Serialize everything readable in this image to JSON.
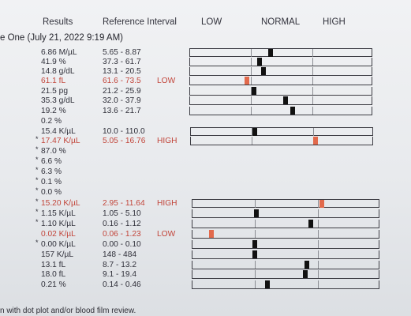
{
  "header": {
    "results": "Results",
    "reference": "Reference Interval",
    "low": "LOW",
    "normal": "NORMAL",
    "high": "HIGH"
  },
  "section_title": "e One (July 21, 2022 9:19 AM)",
  "rows": [
    {
      "value": "6.86 M/µL",
      "ref": "5.65 - 8.87",
      "flag": "",
      "star": false,
      "abnormal": false,
      "level": 0.44
    },
    {
      "value": "41.9 %",
      "ref": "37.3 - 61.7",
      "flag": "",
      "star": false,
      "abnormal": false,
      "level": 0.38
    },
    {
      "value": "14.8 g/dL",
      "ref": "13.1 - 20.5",
      "flag": "",
      "star": false,
      "abnormal": false,
      "level": 0.4
    },
    {
      "value": "61.1 fL",
      "ref": "61.6 - 73.5",
      "flag": "LOW",
      "star": false,
      "abnormal": true,
      "level": 0.31
    },
    {
      "value": "21.5 pg",
      "ref": "21.2 - 25.9",
      "flag": "",
      "star": false,
      "abnormal": false,
      "level": 0.35
    },
    {
      "value": "35.3 g/dL",
      "ref": "32.0 - 37.9",
      "flag": "",
      "star": false,
      "abnormal": false,
      "level": 0.52
    },
    {
      "value": "19.2 %",
      "ref": "13.6 - 21.7",
      "flag": "",
      "star": false,
      "abnormal": false,
      "level": 0.56
    },
    {
      "value": "0.2 %",
      "ref": "",
      "flag": "",
      "star": false,
      "abnormal": false,
      "level": null
    },
    {
      "value": "15.4 K/µL",
      "ref": "10.0 - 110.0",
      "flag": "",
      "star": false,
      "abnormal": false,
      "level": 0.35
    },
    {
      "value": "17.47 K/µL",
      "ref": "5.05 - 16.76",
      "flag": "HIGH",
      "star": true,
      "abnormal": true,
      "level": 0.68
    },
    {
      "value": "87.0 %",
      "ref": "",
      "flag": "",
      "star": true,
      "abnormal": false,
      "level": null
    },
    {
      "value": "6.6 %",
      "ref": "",
      "flag": "",
      "star": true,
      "abnormal": false,
      "level": null
    },
    {
      "value": "6.3 %",
      "ref": "",
      "flag": "",
      "star": true,
      "abnormal": false,
      "level": null
    },
    {
      "value": "0.1 %",
      "ref": "",
      "flag": "",
      "star": true,
      "abnormal": false,
      "level": null
    },
    {
      "value": "0.0 %",
      "ref": "",
      "flag": "",
      "star": true,
      "abnormal": false,
      "level": null
    },
    {
      "value": "15.20 K/µL",
      "ref": "2.95 - 11.64",
      "flag": "HIGH",
      "star": true,
      "abnormal": true,
      "level": 0.69
    },
    {
      "value": "1.15 K/µL",
      "ref": "1.05 - 5.10",
      "flag": "",
      "star": true,
      "abnormal": false,
      "level": 0.34
    },
    {
      "value": "1.10 K/µL",
      "ref": "0.16 - 1.12",
      "flag": "",
      "star": true,
      "abnormal": false,
      "level": 0.63
    },
    {
      "value": "0.02 K/µL",
      "ref": "0.06 - 1.23",
      "flag": "LOW",
      "star": false,
      "abnormal": true,
      "level": 0.1
    },
    {
      "value": "0.00 K/µL",
      "ref": "0.00 - 0.10",
      "flag": "",
      "star": true,
      "abnormal": false,
      "level": 0.33
    },
    {
      "value": "157 K/µL",
      "ref": "148 - 484",
      "flag": "",
      "star": false,
      "abnormal": false,
      "level": 0.33
    },
    {
      "value": "13.1 fL",
      "ref": "8.7 - 13.2",
      "flag": "",
      "star": false,
      "abnormal": false,
      "level": 0.61
    },
    {
      "value": "18.0 fL",
      "ref": "9.1 - 19.4",
      "flag": "",
      "star": false,
      "abnormal": false,
      "level": 0.6
    },
    {
      "value": "0.21 %",
      "ref": "0.14 - 0.46",
      "flag": "",
      "star": false,
      "abnormal": false,
      "level": 0.4
    }
  ],
  "footer": "n with dot plot and/or blood film review.",
  "colors": {
    "abnormal": "#c2453a",
    "marker": "#111111",
    "abnormal_marker": "#e26a4c"
  }
}
